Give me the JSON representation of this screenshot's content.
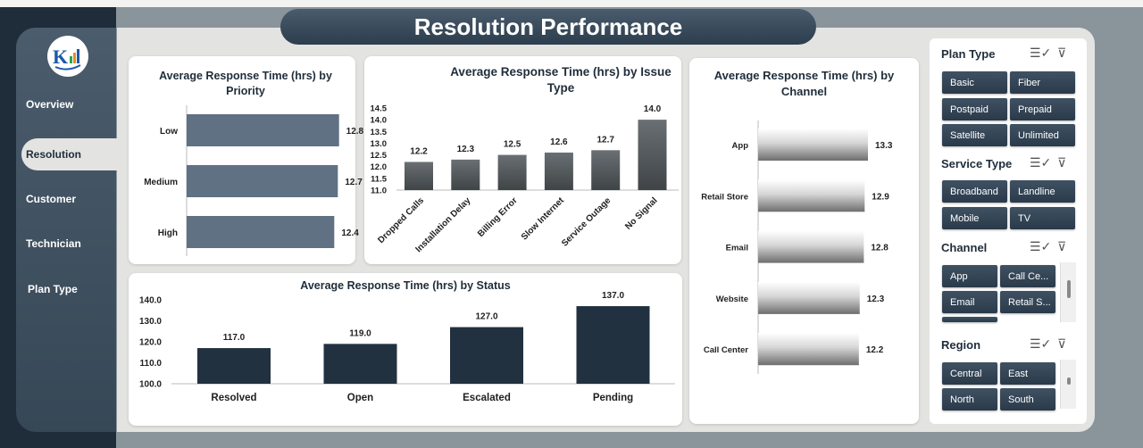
{
  "title": "Resolution Performance",
  "nav": {
    "items": [
      {
        "label": "Overview"
      },
      {
        "label": "Resolution"
      },
      {
        "label": "Customer"
      },
      {
        "label": "Technician"
      },
      {
        "label": "Plan Type"
      }
    ],
    "active": "Resolution"
  },
  "logo": {
    "icon": "logo-icon"
  },
  "chart_data": [
    {
      "type": "bar",
      "orientation": "horizontal",
      "title": "Average Response Time (hrs) by Priority",
      "categories": [
        "Low",
        "Medium",
        "High"
      ],
      "values": [
        12.8,
        12.7,
        12.4
      ],
      "color": "#5f7183"
    },
    {
      "type": "bar",
      "title": "Average Response Time (hrs) by Issue Type",
      "categories": [
        "Dropped Calls",
        "Installation Delay",
        "Billing Error",
        "Slow Internet",
        "Service Outage",
        "No Signal"
      ],
      "values": [
        12.2,
        12.3,
        12.5,
        12.6,
        12.7,
        14.0
      ],
      "ylim": [
        11.0,
        14.5
      ],
      "yticks": [
        "14.5",
        "14.0",
        "13.5",
        "13.0",
        "12.5",
        "12.0",
        "11.5",
        "11.0"
      ],
      "color": "gradient-gray"
    },
    {
      "type": "bar",
      "orientation": "horizontal",
      "title": "Average Response Time (hrs) by Channel",
      "categories": [
        "App",
        "Retail Store",
        "Email",
        "Website",
        "Call Center"
      ],
      "values": [
        13.3,
        12.9,
        12.8,
        12.3,
        12.2
      ],
      "color": "gradient-silver"
    },
    {
      "type": "bar",
      "title": "Average Response Time (hrs) by Status",
      "categories": [
        "Resolved",
        "Open",
        "Escalated",
        "Pending"
      ],
      "values": [
        117.0,
        119.0,
        127.0,
        137.0
      ],
      "value_labels": [
        "117.0",
        "119.0",
        "127.0",
        "137.0"
      ],
      "ylim": [
        100.0,
        140.0
      ],
      "yticks": [
        "140.0",
        "130.0",
        "120.0",
        "110.0",
        "100.0"
      ],
      "color": "#223140"
    }
  ],
  "slicers": {
    "plan_type": {
      "title": "Plan Type",
      "options": [
        "Basic",
        "Fiber",
        "Postpaid",
        "Prepaid",
        "Satellite",
        "Unlimited"
      ]
    },
    "service_type": {
      "title": "Service Type",
      "options": [
        "Broadband",
        "Landline",
        "Mobile",
        "TV"
      ]
    },
    "channel": {
      "title": "Channel",
      "options": [
        "App",
        "Call Ce...",
        "Email",
        "Retail S..."
      ]
    },
    "region": {
      "title": "Region",
      "options": [
        "Central",
        "East",
        "North",
        "South"
      ]
    }
  },
  "icons": {
    "multi_select": "multi-select-icon",
    "clear_filter": "clear-filter-icon"
  }
}
